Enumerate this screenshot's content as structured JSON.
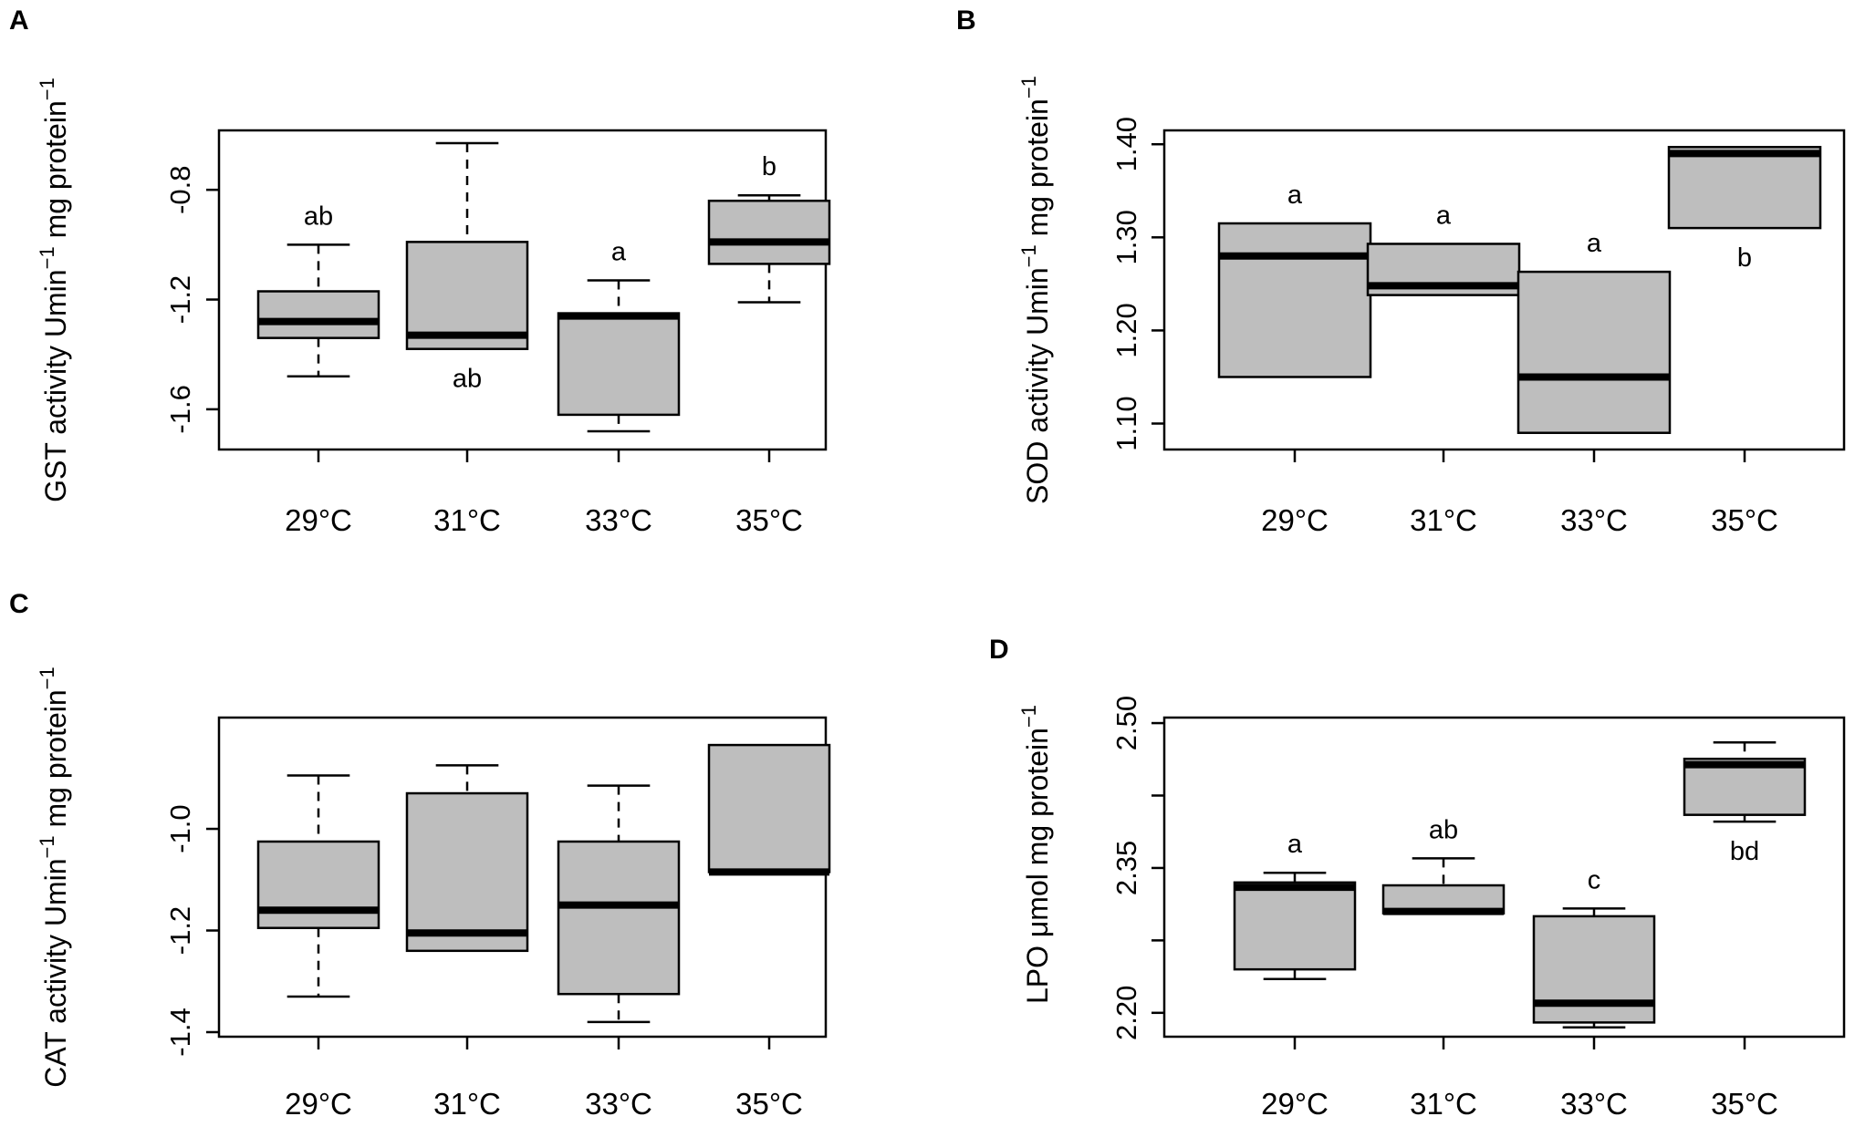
{
  "figure": {
    "panels": [
      "A",
      "B",
      "C",
      "D"
    ]
  },
  "chart_data": [
    {
      "type": "box",
      "panel": "A",
      "ylabel_main": "GST activity Umin",
      "ylabel_sup": "−1",
      "ylabel_rest": " mg protein",
      "ylabel_sup2": "−1",
      "ylim": [
        -1.73,
        -0.6
      ],
      "yticks": [
        -1.6,
        -1.2,
        -0.8
      ],
      "ytick_labels": [
        "-1.6",
        "-1.2",
        "-0.8"
      ],
      "categories": [
        "29°C",
        "31°C",
        "33°C",
        "35°C"
      ],
      "boxes": [
        {
          "whisker_low": -1.48,
          "q1": -1.34,
          "median": -1.28,
          "q3": -1.17,
          "whisker_high": -1.0,
          "sig": "ab",
          "sig_pos": "above"
        },
        {
          "whisker_low": -1.38,
          "q1": -1.38,
          "median": -1.33,
          "q3": -0.99,
          "whisker_high": -0.63,
          "sig": "ab",
          "sig_pos": "below"
        },
        {
          "whisker_low": -1.68,
          "q1": -1.62,
          "median": -1.26,
          "q3": -1.25,
          "whisker_high": -1.13,
          "sig": "a",
          "sig_pos": "above"
        },
        {
          "whisker_low": -1.21,
          "q1": -1.07,
          "median": -0.99,
          "q3": -0.84,
          "whisker_high": -0.82,
          "sig": "b",
          "sig_pos": "above"
        }
      ]
    },
    {
      "type": "box",
      "panel": "B",
      "ylabel_main": "SOD activity Umin",
      "ylabel_sup": "−1",
      "ylabel_rest": " mg protein",
      "ylabel_sup2": "−1",
      "ylim": [
        1.077,
        1.41
      ],
      "yticks": [
        1.1,
        1.2,
        1.3,
        1.4
      ],
      "ytick_labels": [
        "1.10",
        "1.20",
        "1.30",
        "1.40"
      ],
      "categories": [
        "29°C",
        "31°C",
        "33°C",
        "35°C"
      ],
      "boxes": [
        {
          "whisker_low": 1.15,
          "q1": 1.15,
          "median": 1.28,
          "q3": 1.315,
          "whisker_high": 1.315,
          "sig": "a",
          "sig_pos": "above"
        },
        {
          "whisker_low": 1.238,
          "q1": 1.238,
          "median": 1.248,
          "q3": 1.293,
          "whisker_high": 1.293,
          "sig": "a",
          "sig_pos": "above"
        },
        {
          "whisker_low": 1.09,
          "q1": 1.09,
          "median": 1.15,
          "q3": 1.263,
          "whisker_high": 1.263,
          "sig": "a",
          "sig_pos": "above"
        },
        {
          "whisker_low": 1.31,
          "q1": 1.31,
          "median": 1.39,
          "q3": 1.397,
          "whisker_high": 1.397,
          "sig": "b",
          "sig_pos": "below"
        }
      ]
    },
    {
      "type": "box",
      "panel": "C",
      "ylabel_main": "CAT activity Umin",
      "ylabel_sup": "−1",
      "ylabel_rest": " mg protein",
      "ylabel_sup2": "−1",
      "ylim": [
        -1.4,
        -0.79
      ],
      "yticks": [
        -1.4,
        -1.2,
        -1.0
      ],
      "ytick_labels": [
        "-1.4",
        "-1.2",
        "-1.0"
      ],
      "categories": [
        "29°C",
        "31°C",
        "33°C",
        "35°C"
      ],
      "boxes": [
        {
          "whisker_low": -1.33,
          "q1": -1.195,
          "median": -1.16,
          "q3": -1.025,
          "whisker_high": -0.895,
          "sig": "",
          "sig_pos": "above"
        },
        {
          "whisker_low": -1.24,
          "q1": -1.24,
          "median": -1.205,
          "q3": -0.93,
          "whisker_high": -0.875,
          "sig": "",
          "sig_pos": "above"
        },
        {
          "whisker_low": -1.38,
          "q1": -1.325,
          "median": -1.15,
          "q3": -1.025,
          "whisker_high": -0.915,
          "sig": "",
          "sig_pos": "above"
        },
        {
          "whisker_low": -1.085,
          "q1": -1.085,
          "median": -1.085,
          "q3": -0.835,
          "whisker_high": -0.835,
          "sig": "",
          "sig_pos": "above"
        }
      ]
    },
    {
      "type": "box",
      "panel": "D",
      "ylabel_main": "LPO μmol mg protein",
      "ylabel_sup": "−1",
      "ylabel_rest": "",
      "ylabel_sup2": "",
      "ylim": [
        2.18,
        2.501
      ],
      "yticks": [
        2.2,
        2.35,
        2.5
      ],
      "ytick_labels": [
        "2.20",
        "2.35",
        "2.50"
      ],
      "extra_ytick_values": [
        2.275,
        2.425
      ],
      "categories": [
        "29°C",
        "31°C",
        "33°C",
        "35°C"
      ],
      "boxes": [
        {
          "whisker_low": 2.235,
          "q1": 2.245,
          "median": 2.33,
          "q3": 2.335,
          "whisker_high": 2.345,
          "sig": "a",
          "sig_pos": "above"
        },
        {
          "whisker_low": 2.303,
          "q1": 2.303,
          "median": 2.305,
          "q3": 2.332,
          "whisker_high": 2.36,
          "sig": "ab",
          "sig_pos": "above"
        },
        {
          "whisker_low": 2.185,
          "q1": 2.19,
          "median": 2.21,
          "q3": 2.3,
          "whisker_high": 2.308,
          "sig": "c",
          "sig_pos": "above"
        },
        {
          "whisker_low": 2.398,
          "q1": 2.405,
          "median": 2.457,
          "q3": 2.463,
          "whisker_high": 2.48,
          "sig": "bd",
          "sig_pos": "below"
        }
      ]
    }
  ]
}
